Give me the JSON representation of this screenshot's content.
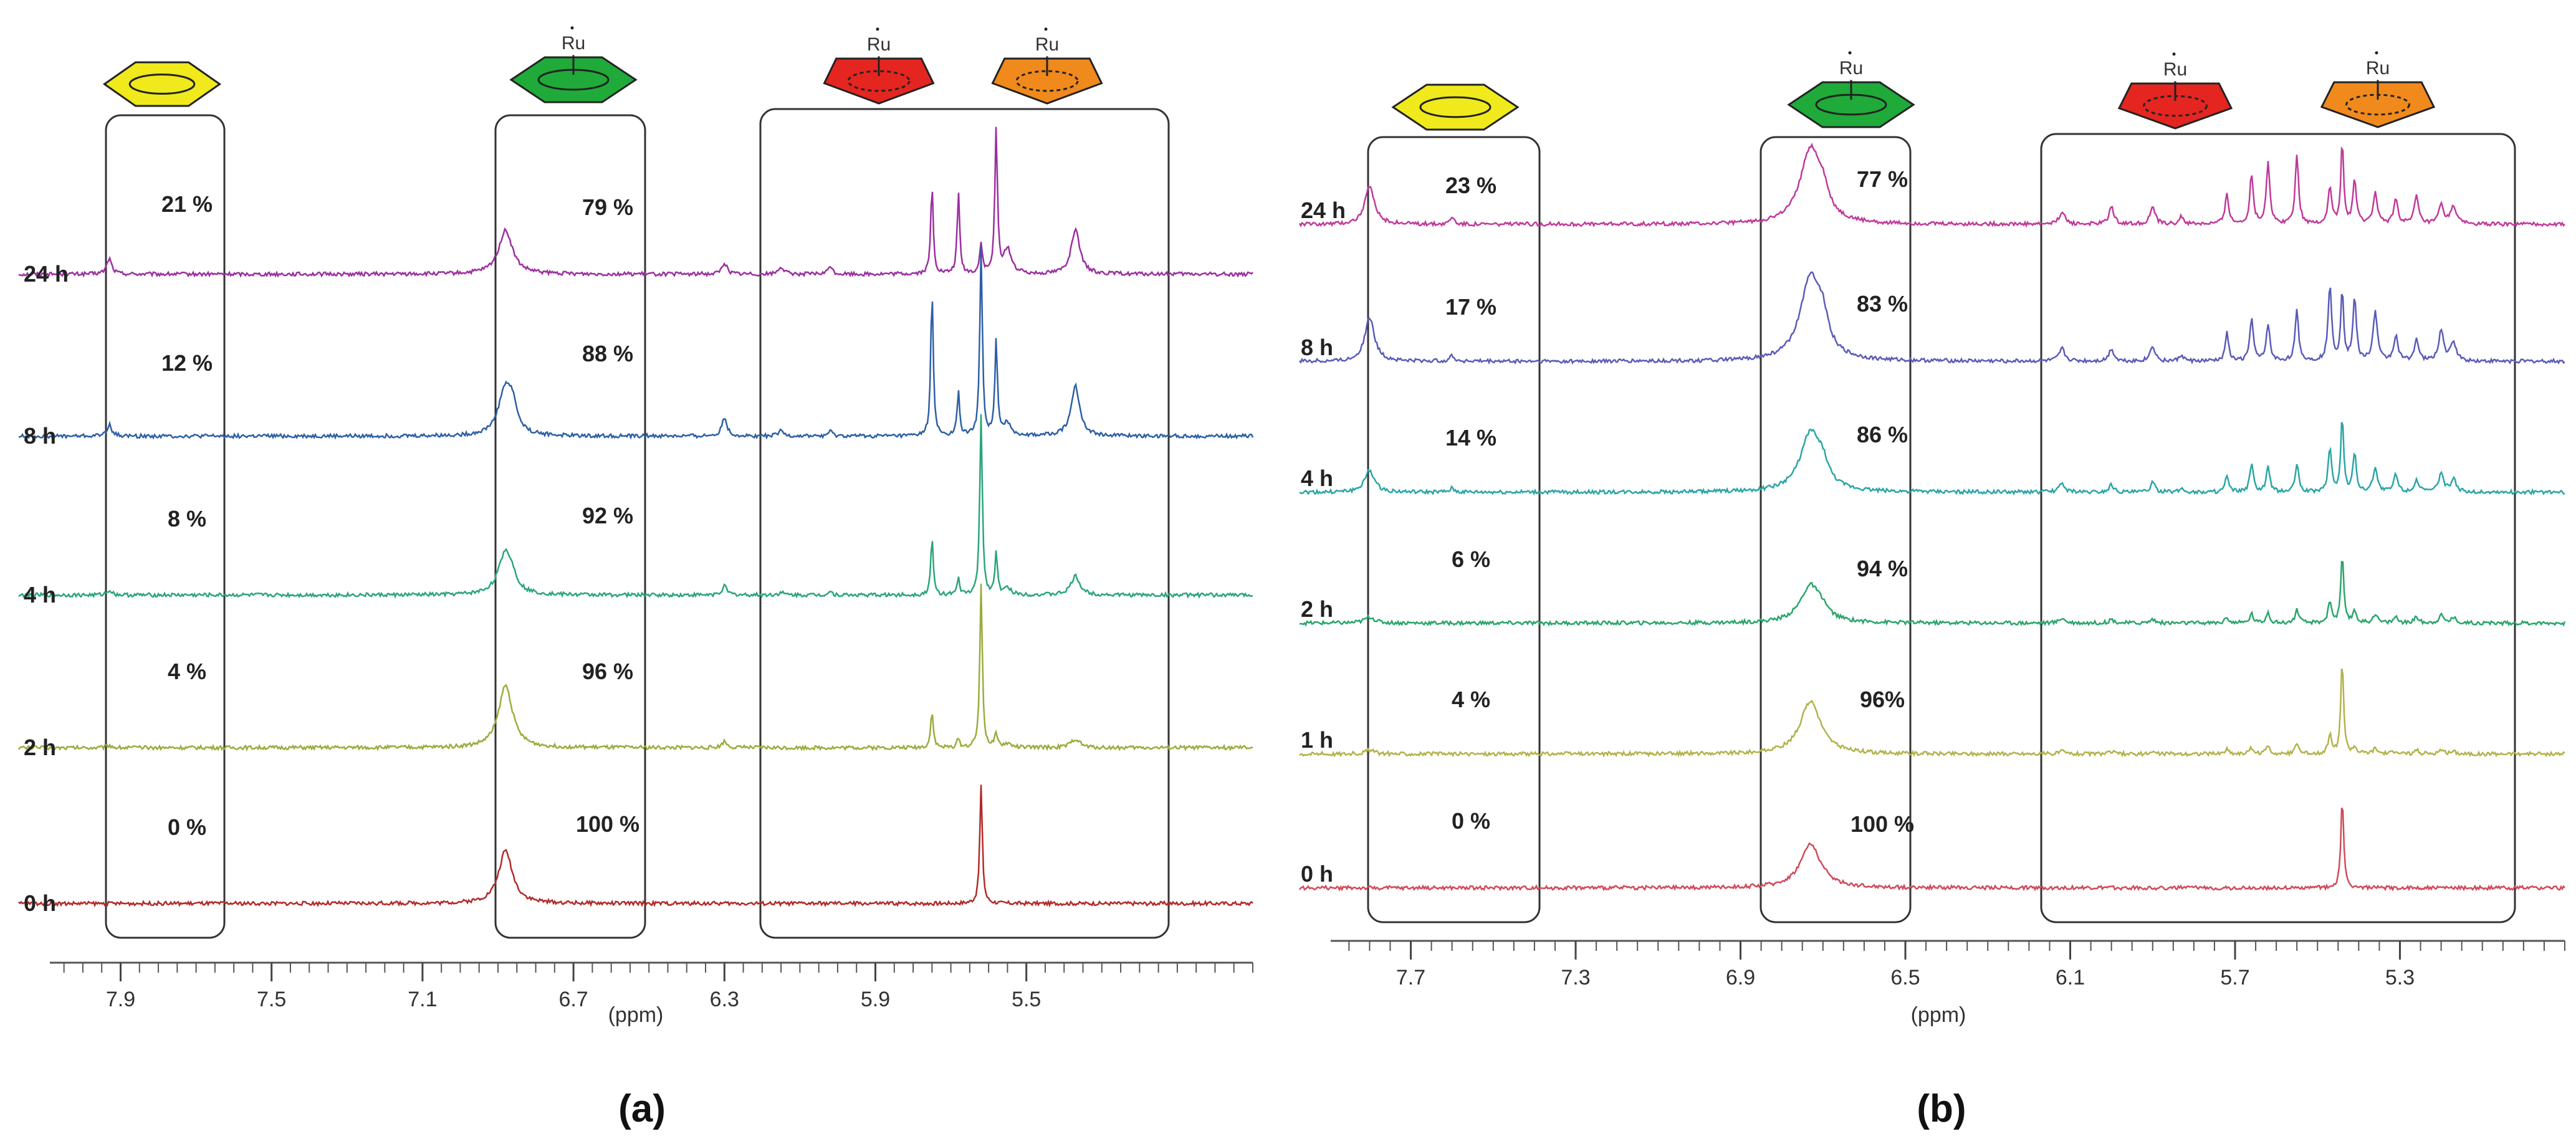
{
  "chart_data": [
    {
      "type": "line",
      "panel_label": "(a)",
      "xlabel": "(ppm)",
      "xlim": [
        8.17,
        4.9
      ],
      "ticks": [
        "7.9",
        "7.5",
        "7.1",
        "6.7",
        "6.3",
        "5.9",
        "5.5"
      ],
      "tick_values": [
        7.9,
        7.5,
        7.1,
        6.7,
        6.3,
        5.9,
        5.5
      ],
      "series": [
        {
          "name": "24 h",
          "color": "#9b2fa0",
          "free_benzene": "21 %",
          "complex": "79 %"
        },
        {
          "name": "8 h",
          "color": "#2d5fa6",
          "free_benzene": "12 %",
          "complex": "88 %"
        },
        {
          "name": "4 h",
          "color": "#2aa57a",
          "free_benzene": "8 %",
          "complex": "92 %"
        },
        {
          "name": "2 h",
          "color": "#9aac3c",
          "free_benzene": "4 %",
          "complex": "96 %"
        },
        {
          "name": "0 h",
          "color": "#b22a2a",
          "free_benzene": "0 %",
          "complex": "100 %"
        }
      ],
      "ru_labels": [
        "Ru",
        "Ru",
        "Ru"
      ],
      "region_icons": {
        "free": "yellow-hexagon",
        "complex": "green-hexagon",
        "cp1": "red-pentagon",
        "cp2": "orange-pentagon"
      }
    },
    {
      "type": "line",
      "panel_label": "(b)",
      "xlabel": "(ppm)",
      "xlim": [
        7.97,
        4.9
      ],
      "ticks": [
        "7.7",
        "7.3",
        "6.9",
        "6.5",
        "6.1",
        "5.7",
        "5.3"
      ],
      "tick_values": [
        7.7,
        7.3,
        6.9,
        6.5,
        6.1,
        5.7,
        5.3
      ],
      "series": [
        {
          "name": "24 h",
          "color": "#c0399a",
          "free_benzene": "23 %",
          "complex": "77 %"
        },
        {
          "name": "8 h",
          "color": "#5a5bb8",
          "free_benzene": "17 %",
          "complex": "83 %"
        },
        {
          "name": "4 h",
          "color": "#2aa5a5",
          "free_benzene": "14 %",
          "complex": "86 %"
        },
        {
          "name": "2 h",
          "color": "#2aa56a",
          "free_benzene": "6 %",
          "complex": "94 %"
        },
        {
          "name": "1 h",
          "color": "#b2b24a",
          "free_benzene": "4 %",
          "complex": "96%"
        },
        {
          "name": "0 h",
          "color": "#d04a5a",
          "free_benzene": "0 %",
          "complex": "100 %"
        }
      ],
      "ru_labels": [
        "Ru",
        "Ru",
        "Ru"
      ],
      "region_icons": {
        "free": "yellow-hexagon",
        "complex": "green-hexagon",
        "cp1": "red-pentagon",
        "cp2": "orange-pentagon"
      }
    }
  ]
}
